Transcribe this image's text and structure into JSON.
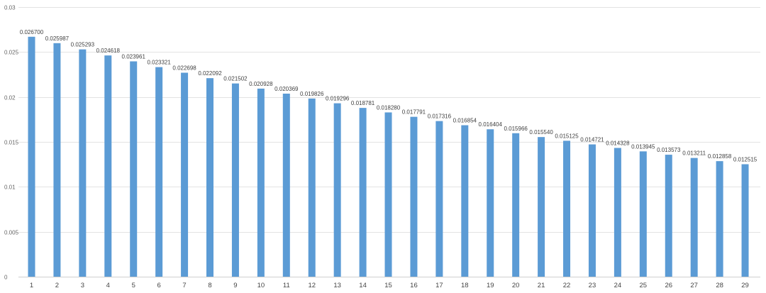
{
  "chart_data": {
    "type": "bar",
    "title": "",
    "xlabel": "",
    "ylabel": "",
    "ylim": [
      0,
      0.03
    ],
    "y_ticks": [
      "0",
      "0.005",
      "0.01",
      "0.015",
      "0.02",
      "0.025",
      "0.03"
    ],
    "y_tick_values": [
      0,
      0.005,
      0.01,
      0.015,
      0.02,
      0.025,
      0.03
    ],
    "grid": true,
    "legend": "none",
    "bar_color": "#5b9bd5",
    "categories": [
      "1",
      "2",
      "3",
      "4",
      "5",
      "6",
      "7",
      "8",
      "9",
      "10",
      "11",
      "12",
      "13",
      "14",
      "15",
      "16",
      "17",
      "18",
      "19",
      "20",
      "21",
      "22",
      "23",
      "24",
      "25",
      "26",
      "27",
      "28",
      "29"
    ],
    "values": [
      0.0267,
      0.025987,
      0.025293,
      0.024618,
      0.023961,
      0.023321,
      0.022698,
      0.022092,
      0.021502,
      0.020928,
      0.020369,
      0.019826,
      0.019296,
      0.018781,
      0.01828,
      0.017791,
      0.017316,
      0.016854,
      0.016404,
      0.015966,
      0.01554,
      0.015125,
      0.014721,
      0.014328,
      0.013945,
      0.013573,
      0.013211,
      0.012858,
      0.012515
    ],
    "data_labels": [
      "0.026700",
      "0.025987",
      "0.025293",
      "0.024618",
      "0.023961",
      "0.023321",
      "0.022698",
      "0.022092",
      "0.021502",
      "0.020928",
      "0.020369",
      "0.019826",
      "0.019296",
      "0.018781",
      "0.018280",
      "0.017791",
      "0.017316",
      "0.016854",
      "0.016404",
      "0.015966",
      "0.015540",
      "0.015125",
      "0.014721",
      "0.014328",
      "0.013945",
      "0.013573",
      "0.013211",
      "0.012858",
      "0.012515"
    ]
  }
}
